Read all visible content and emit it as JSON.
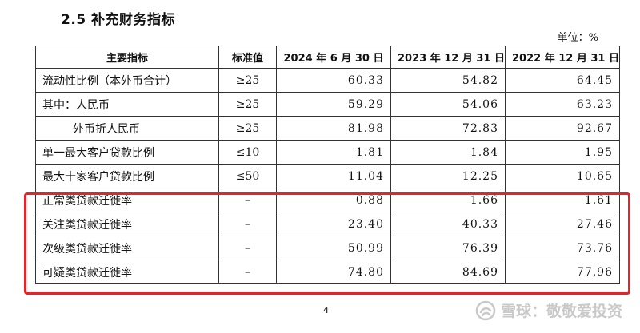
{
  "section_title": "2.5 补充财务指标",
  "unit_label": "单位：%",
  "table": {
    "headers": [
      "主要指标",
      "标准值",
      "2024 年 6 月 30 日",
      "2023 年 12 月 31 日",
      "2022 年 12 月 31 日"
    ],
    "rows": [
      {
        "name": "流动性比例（本外币合计）",
        "standard": "≥25",
        "v2024": "60.33",
        "v2023": "54.82",
        "v2022": "64.45"
      },
      {
        "name": "其中：人民币",
        "standard": "≥25",
        "v2024": "59.29",
        "v2023": "54.06",
        "v2022": "63.23"
      },
      {
        "name": "外币折人民币",
        "standard": "≥25",
        "v2024": "81.98",
        "v2023": "72.83",
        "v2022": "92.67"
      },
      {
        "name": "单一最大客户贷款比例",
        "standard": "≤10",
        "v2024": "1.81",
        "v2023": "1.84",
        "v2022": "1.95"
      },
      {
        "name": "最大十家客户贷款比例",
        "standard": "≤50",
        "v2024": "11.04",
        "v2023": "12.25",
        "v2022": "10.65"
      },
      {
        "name": "正常类贷款迁徙率",
        "standard": "–",
        "v2024": "0.88",
        "v2023": "1.66",
        "v2022": "1.61"
      },
      {
        "name": "关注类贷款迁徙率",
        "standard": "–",
        "v2024": "23.40",
        "v2023": "40.33",
        "v2022": "27.46"
      },
      {
        "name": "次级类贷款迁徙率",
        "standard": "–",
        "v2024": "50.99",
        "v2023": "76.39",
        "v2022": "73.76"
      },
      {
        "name": "可疑类贷款迁徙率",
        "standard": "–",
        "v2024": "74.80",
        "v2023": "84.69",
        "v2022": "77.96"
      }
    ]
  },
  "page_number": "4",
  "watermark_text": "雪球：敬敬爱投资",
  "colors": {
    "highlight": "#e2252b",
    "watermark": "#c9c9c9"
  },
  "icons": {
    "watermark": "snowball-logo-icon"
  }
}
